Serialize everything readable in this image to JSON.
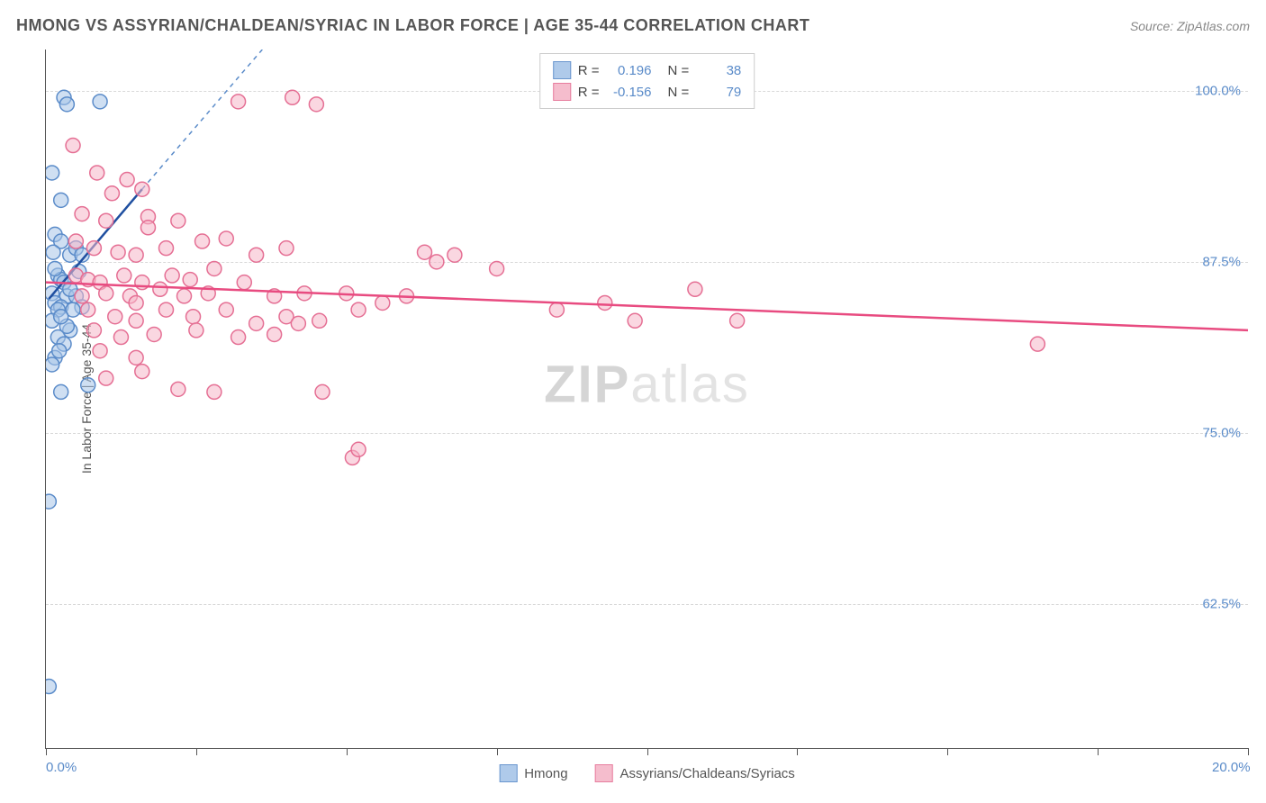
{
  "header": {
    "title": "HMONG VS ASSYRIAN/CHALDEAN/SYRIAC IN LABOR FORCE | AGE 35-44 CORRELATION CHART",
    "source": "Source: ZipAtlas.com"
  },
  "chart": {
    "type": "scatter",
    "ylabel": "In Labor Force | Age 35-44",
    "xlim": [
      0,
      20
    ],
    "ylim": [
      52,
      103
    ],
    "x_ticks": [
      0,
      2.5,
      5,
      7.5,
      10,
      12.5,
      15,
      17.5,
      20
    ],
    "x_tick_labels": {
      "0": "0.0%",
      "20": "20.0%"
    },
    "y_ticks": [
      62.5,
      75.0,
      87.5,
      100.0
    ],
    "y_tick_labels": [
      "62.5%",
      "75.0%",
      "87.5%",
      "100.0%"
    ],
    "background_color": "#ffffff",
    "grid_color": "#d8d8d8",
    "axis_color": "#555555",
    "tick_label_color": "#5a8bc9",
    "marker_radius": 8,
    "marker_stroke_width": 1.5,
    "watermark": "ZIPatlas",
    "series": [
      {
        "name": "Hmong",
        "label": "Hmong",
        "fill_color": "#a7c5e8",
        "stroke_color": "#5a8bc9",
        "fill_opacity": 0.55,
        "line_color": "#1f4fa0",
        "line_dash_color": "#5a8bc9",
        "r_value": "0.196",
        "n_value": "38",
        "points": [
          [
            0.3,
            99.5
          ],
          [
            0.35,
            99.0
          ],
          [
            0.9,
            99.2
          ],
          [
            0.1,
            94.0
          ],
          [
            0.25,
            92.0
          ],
          [
            0.15,
            89.5
          ],
          [
            0.25,
            89.0
          ],
          [
            0.4,
            88.0
          ],
          [
            0.2,
            86.5
          ],
          [
            0.25,
            86.2
          ],
          [
            0.3,
            86.0
          ],
          [
            0.1,
            85.2
          ],
          [
            0.35,
            85.0
          ],
          [
            0.15,
            84.5
          ],
          [
            0.25,
            84.2
          ],
          [
            0.2,
            84.0
          ],
          [
            0.1,
            83.2
          ],
          [
            0.5,
            88.5
          ],
          [
            0.5,
            85.0
          ],
          [
            0.6,
            84.2
          ],
          [
            0.4,
            82.5
          ],
          [
            0.2,
            82.0
          ],
          [
            0.3,
            81.5
          ],
          [
            0.15,
            80.5
          ],
          [
            0.1,
            80.0
          ],
          [
            0.25,
            78.0
          ],
          [
            0.6,
            88.0
          ],
          [
            0.05,
            70.0
          ],
          [
            0.05,
            56.5
          ],
          [
            0.55,
            86.8
          ],
          [
            0.15,
            87.0
          ],
          [
            0.45,
            84.0
          ],
          [
            0.35,
            82.8
          ],
          [
            0.25,
            83.5
          ],
          [
            0.12,
            88.2
          ],
          [
            0.4,
            85.5
          ],
          [
            0.22,
            81.0
          ],
          [
            0.7,
            78.5
          ]
        ],
        "trend_solid": {
          "x1": 0.05,
          "y1": 84.8,
          "x2": 1.6,
          "y2": 92.8
        },
        "trend_dash": {
          "x1": 1.6,
          "y1": 92.8,
          "x2": 3.6,
          "y2": 103.0
        }
      },
      {
        "name": "Assyrians/Chaldeans/Syriacs",
        "label": "Assyrians/Chaldeans/Syriacs",
        "fill_color": "#f5b6c8",
        "stroke_color": "#e56f94",
        "fill_opacity": 0.55,
        "line_color": "#e84b80",
        "r_value": "-0.156",
        "n_value": "79",
        "points": [
          [
            0.45,
            96.0
          ],
          [
            0.85,
            94.0
          ],
          [
            1.35,
            93.5
          ],
          [
            1.1,
            92.5
          ],
          [
            1.6,
            92.8
          ],
          [
            0.6,
            91.0
          ],
          [
            1.0,
            90.5
          ],
          [
            1.7,
            90.8
          ],
          [
            1.7,
            90.0
          ],
          [
            2.2,
            90.5
          ],
          [
            0.5,
            89.0
          ],
          [
            0.8,
            88.5
          ],
          [
            1.2,
            88.2
          ],
          [
            1.5,
            88.0
          ],
          [
            2.0,
            88.5
          ],
          [
            2.6,
            89.0
          ],
          [
            3.0,
            89.2
          ],
          [
            0.5,
            86.5
          ],
          [
            0.7,
            86.2
          ],
          [
            0.9,
            86.0
          ],
          [
            1.3,
            86.5
          ],
          [
            1.6,
            86.0
          ],
          [
            2.1,
            86.5
          ],
          [
            2.4,
            86.2
          ],
          [
            2.8,
            87.0
          ],
          [
            3.5,
            88.0
          ],
          [
            4.0,
            88.5
          ],
          [
            0.6,
            85.0
          ],
          [
            1.0,
            85.2
          ],
          [
            1.4,
            85.0
          ],
          [
            1.5,
            84.5
          ],
          [
            1.9,
            85.5
          ],
          [
            2.3,
            85.0
          ],
          [
            2.7,
            85.2
          ],
          [
            3.3,
            86.0
          ],
          [
            3.8,
            85.0
          ],
          [
            4.3,
            85.2
          ],
          [
            5.0,
            85.2
          ],
          [
            6.3,
            88.2
          ],
          [
            6.5,
            87.5
          ],
          [
            0.7,
            84.0
          ],
          [
            1.15,
            83.5
          ],
          [
            1.5,
            83.2
          ],
          [
            2.0,
            84.0
          ],
          [
            2.45,
            83.5
          ],
          [
            3.0,
            84.0
          ],
          [
            3.5,
            83.0
          ],
          [
            4.0,
            83.5
          ],
          [
            4.55,
            83.2
          ],
          [
            5.2,
            84.0
          ],
          [
            5.6,
            84.5
          ],
          [
            8.5,
            84.0
          ],
          [
            9.3,
            84.5
          ],
          [
            0.8,
            82.5
          ],
          [
            1.25,
            82.0
          ],
          [
            1.8,
            82.2
          ],
          [
            2.5,
            82.5
          ],
          [
            3.2,
            82.0
          ],
          [
            3.8,
            82.2
          ],
          [
            6.8,
            88.0
          ],
          [
            9.8,
            83.2
          ],
          [
            10.8,
            85.5
          ],
          [
            0.9,
            81.0
          ],
          [
            1.5,
            80.5
          ],
          [
            2.2,
            78.2
          ],
          [
            2.8,
            78.0
          ],
          [
            4.6,
            78.0
          ],
          [
            11.5,
            83.2
          ],
          [
            4.1,
            99.5
          ],
          [
            4.5,
            99.0
          ],
          [
            16.5,
            81.5
          ],
          [
            5.1,
            73.2
          ],
          [
            5.2,
            73.8
          ],
          [
            7.5,
            87.0
          ],
          [
            4.2,
            83.0
          ],
          [
            3.2,
            99.2
          ],
          [
            1.0,
            79.0
          ],
          [
            1.6,
            79.5
          ],
          [
            6.0,
            85.0
          ]
        ],
        "trend_solid": {
          "x1": 0.0,
          "y1": 86.0,
          "x2": 20.0,
          "y2": 82.5
        }
      }
    ]
  },
  "legend_top": {
    "r_label": "R =",
    "n_label": "N ="
  },
  "legend_bottom": {
    "items": [
      "Hmong",
      "Assyrians/Chaldeans/Syriacs"
    ]
  }
}
